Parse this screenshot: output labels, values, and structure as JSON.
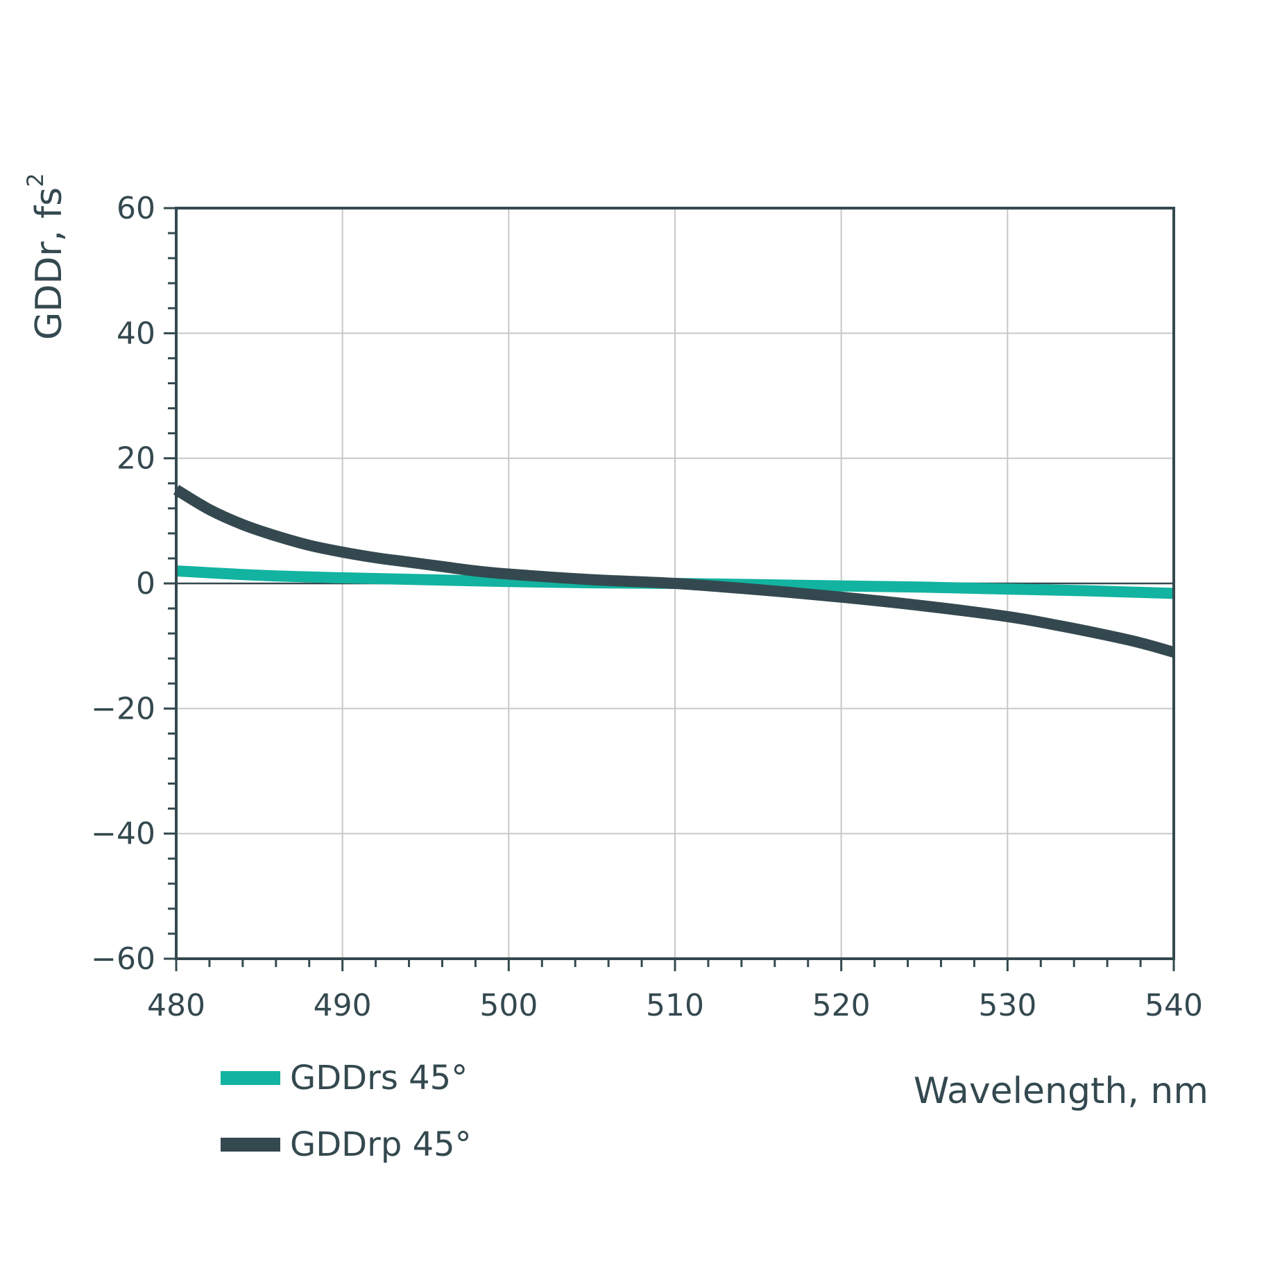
{
  "chart_data": {
    "type": "line",
    "xlabel": "Wavelength, nm",
    "ylabel": "GDDr, fs",
    "ylabel_superscript": "2",
    "xlim": [
      480,
      540
    ],
    "ylim": [
      -60,
      60
    ],
    "x_ticks": [
      "480",
      "490",
      "500",
      "510",
      "520",
      "530",
      "540"
    ],
    "y_ticks": [
      "60",
      "40",
      "20",
      "0",
      "−20",
      "−40",
      "−60"
    ],
    "grid": true,
    "legend_position": "bottom-left",
    "series": [
      {
        "name": "GDDrs 45°",
        "color": "#12b3a0",
        "x": [
          480,
          485,
          490,
          495,
          500,
          505,
          510,
          515,
          520,
          525,
          530,
          535,
          540
        ],
        "y": [
          2.0,
          1.3,
          0.9,
          0.6,
          0.3,
          0.1,
          0.0,
          -0.2,
          -0.4,
          -0.6,
          -0.9,
          -1.2,
          -1.6
        ]
      },
      {
        "name": "GDDrp 45°",
        "color": "#34494f",
        "x": [
          480,
          482,
          484,
          486,
          488,
          490,
          492,
          494,
          496,
          498,
          500,
          505,
          510,
          515,
          520,
          525,
          530,
          533,
          536,
          538,
          540
        ],
        "y": [
          15,
          11.8,
          9.4,
          7.6,
          6.1,
          5.0,
          4.1,
          3.4,
          2.7,
          2.0,
          1.5,
          0.6,
          0.0,
          -1.0,
          -2.2,
          -3.6,
          -5.3,
          -6.7,
          -8.3,
          -9.5,
          -11.0
        ]
      }
    ]
  }
}
